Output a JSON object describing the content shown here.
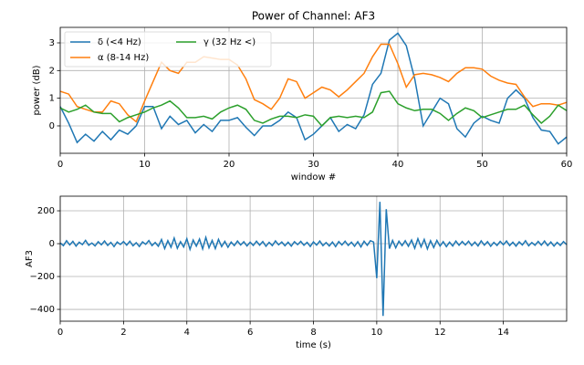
{
  "chart_data": [
    {
      "type": "line",
      "title": "Power of Channel: AF3",
      "xlabel": "window #",
      "ylabel": "power (dB)",
      "x": [
        0,
        1,
        2,
        3,
        4,
        5,
        6,
        7,
        8,
        9,
        10,
        11,
        12,
        13,
        14,
        15,
        16,
        17,
        18,
        19,
        20,
        21,
        22,
        23,
        24,
        25,
        26,
        27,
        28,
        29,
        30,
        31,
        32,
        33,
        34,
        35,
        36,
        37,
        38,
        39,
        40,
        41,
        42,
        43,
        44,
        45,
        46,
        47,
        48,
        49,
        50,
        51,
        52,
        53,
        54,
        55,
        56,
        57,
        58,
        59,
        60
      ],
      "series": [
        {
          "name": "δ (<4 Hz)",
          "color": "#1f77b4",
          "values": [
            0.7,
            0.1,
            -0.6,
            -0.3,
            -0.55,
            -0.2,
            -0.5,
            -0.15,
            -0.3,
            0.0,
            0.7,
            0.7,
            -0.1,
            0.35,
            0.05,
            0.2,
            -0.25,
            0.05,
            -0.2,
            0.2,
            0.2,
            0.3,
            -0.05,
            -0.35,
            0.0,
            0.0,
            0.2,
            0.5,
            0.3,
            -0.5,
            -0.3,
            0.0,
            0.3,
            -0.2,
            0.05,
            -0.1,
            0.4,
            1.5,
            1.9,
            3.1,
            3.35,
            2.9,
            1.7,
            0.0,
            0.5,
            1.0,
            0.8,
            -0.1,
            -0.4,
            0.1,
            0.35,
            0.2,
            0.1,
            1.0,
            1.3,
            1.0,
            0.3,
            -0.15,
            -0.2,
            -0.65,
            -0.4
          ]
        },
        {
          "name": "α (8-14 Hz)",
          "color": "#ff7f0e",
          "values": [
            1.25,
            1.15,
            0.7,
            0.6,
            0.5,
            0.5,
            0.9,
            0.8,
            0.4,
            0.15,
            0.9,
            1.6,
            2.3,
            2.0,
            1.9,
            2.3,
            2.3,
            2.5,
            2.45,
            2.4,
            2.4,
            2.2,
            1.7,
            0.95,
            0.8,
            0.6,
            1.0,
            1.7,
            1.6,
            1.0,
            1.2,
            1.4,
            1.3,
            1.05,
            1.3,
            1.6,
            1.9,
            2.5,
            2.95,
            2.95,
            2.25,
            1.4,
            1.85,
            1.9,
            1.85,
            1.75,
            1.6,
            1.9,
            2.1,
            2.1,
            2.05,
            1.8,
            1.65,
            1.55,
            1.5,
            1.05,
            0.7,
            0.8,
            0.8,
            0.75,
            0.85
          ]
        },
        {
          "name": "γ (32 Hz <)",
          "color": "#2ca02c",
          "values": [
            0.65,
            0.5,
            0.6,
            0.75,
            0.5,
            0.45,
            0.45,
            0.15,
            0.3,
            0.4,
            0.5,
            0.65,
            0.75,
            0.9,
            0.65,
            0.3,
            0.3,
            0.35,
            0.25,
            0.5,
            0.65,
            0.75,
            0.6,
            0.2,
            0.1,
            0.25,
            0.35,
            0.35,
            0.3,
            0.4,
            0.35,
            0.0,
            0.3,
            0.35,
            0.3,
            0.35,
            0.3,
            0.5,
            1.2,
            1.25,
            0.8,
            0.65,
            0.55,
            0.6,
            0.6,
            0.45,
            0.2,
            0.45,
            0.65,
            0.55,
            0.3,
            0.4,
            0.5,
            0.6,
            0.6,
            0.75,
            0.4,
            0.1,
            0.35,
            0.75,
            0.55
          ]
        }
      ],
      "xlim": [
        0,
        60
      ],
      "xticks": [
        0,
        10,
        20,
        30,
        40,
        50,
        60
      ],
      "ylim": [
        -0.99,
        3.56
      ],
      "yticks": [
        0,
        1,
        2,
        3
      ],
      "grid": true,
      "legend": "upper left",
      "legend_columns": 2
    },
    {
      "type": "line",
      "xlabel": "time (s)",
      "ylabel": "AF3",
      "color": "#1f77b4",
      "x": [
        0,
        0.1,
        0.2,
        0.3,
        0.4,
        0.5,
        0.6,
        0.7,
        0.8,
        0.9,
        1,
        1.1,
        1.2,
        1.3,
        1.4,
        1.5,
        1.6,
        1.7,
        1.8,
        1.9,
        2,
        2.1,
        2.2,
        2.3,
        2.4,
        2.5,
        2.6,
        2.7,
        2.8,
        2.9,
        3,
        3.1,
        3.2,
        3.3,
        3.4,
        3.5,
        3.6,
        3.7,
        3.8,
        3.9,
        4,
        4.1,
        4.2,
        4.3,
        4.4,
        4.5,
        4.6,
        4.7,
        4.8,
        4.9,
        5,
        5.1,
        5.2,
        5.3,
        5.4,
        5.5,
        5.6,
        5.7,
        5.8,
        5.9,
        6,
        6.1,
        6.2,
        6.3,
        6.4,
        6.5,
        6.6,
        6.7,
        6.8,
        6.9,
        7,
        7.1,
        7.2,
        7.3,
        7.4,
        7.5,
        7.6,
        7.7,
        7.8,
        7.9,
        8,
        8.1,
        8.2,
        8.3,
        8.4,
        8.5,
        8.6,
        8.7,
        8.8,
        8.9,
        9,
        9.1,
        9.2,
        9.3,
        9.4,
        9.5,
        9.6,
        9.7,
        9.8,
        9.9,
        10,
        10.1,
        10.2,
        10.3,
        10.4,
        10.5,
        10.6,
        10.7,
        10.8,
        10.9,
        11,
        11.1,
        11.2,
        11.3,
        11.4,
        11.5,
        11.6,
        11.7,
        11.8,
        11.9,
        12,
        12.1,
        12.2,
        12.3,
        12.4,
        12.5,
        12.6,
        12.7,
        12.8,
        12.9,
        13,
        13.1,
        13.2,
        13.3,
        13.4,
        13.5,
        13.6,
        13.7,
        13.8,
        13.9,
        14,
        14.1,
        14.2,
        14.3,
        14.4,
        14.5,
        14.6,
        14.7,
        14.8,
        14.9,
        15,
        15.1,
        15.2,
        15.3,
        15.4,
        15.5,
        15.6,
        15.7,
        15.8,
        15.9,
        16
      ],
      "values": [
        5,
        -12,
        18,
        -8,
        14,
        -15,
        9,
        -6,
        20,
        -10,
        4,
        -14,
        12,
        -7,
        16,
        -11,
        8,
        -18,
        10,
        -5,
        13,
        -9,
        15,
        -13,
        6,
        -17,
        11,
        -4,
        19,
        -12,
        7,
        -16,
        25,
        -30,
        18,
        -22,
        34,
        -28,
        12,
        -20,
        30,
        -35,
        22,
        -15,
        28,
        -32,
        38,
        -25,
        20,
        -30,
        26,
        -18,
        14,
        -22,
        10,
        -12,
        16,
        -8,
        12,
        -14,
        9,
        -11,
        15,
        -9,
        13,
        -16,
        8,
        -12,
        17,
        -7,
        10,
        -13,
        9,
        -15,
        12,
        -6,
        14,
        -10,
        8,
        -17,
        11,
        -9,
        16,
        -12,
        7,
        -14,
        10,
        -18,
        13,
        -8,
        15,
        -11,
        9,
        -16,
        12,
        -20,
        15,
        -10,
        18,
        10,
        -210,
        255,
        -440,
        210,
        -30,
        20,
        -25,
        15,
        -12,
        18,
        -16,
        22,
        -28,
        30,
        -20,
        26,
        -32,
        18,
        -24,
        20,
        -15,
        12,
        -18,
        9,
        -14,
        16,
        -10,
        13,
        -8,
        15,
        -12,
        10,
        -14,
        17,
        -9,
        12,
        -16,
        8,
        -11,
        14,
        -7,
        16,
        -12,
        9,
        -15,
        11,
        -8,
        18,
        -13,
        7,
        -10,
        14,
        -9,
        16,
        -12,
        10,
        -15,
        8,
        -11,
        13,
        -6
      ],
      "xlim": [
        0,
        16
      ],
      "xticks": [
        0,
        2,
        4,
        6,
        8,
        10,
        12,
        14
      ],
      "ylim": [
        -472,
        289
      ],
      "yticks": [
        {
          "value": -400,
          "label": "−400"
        },
        {
          "value": -200,
          "label": "−200"
        },
        0,
        200
      ],
      "grid": true
    }
  ]
}
